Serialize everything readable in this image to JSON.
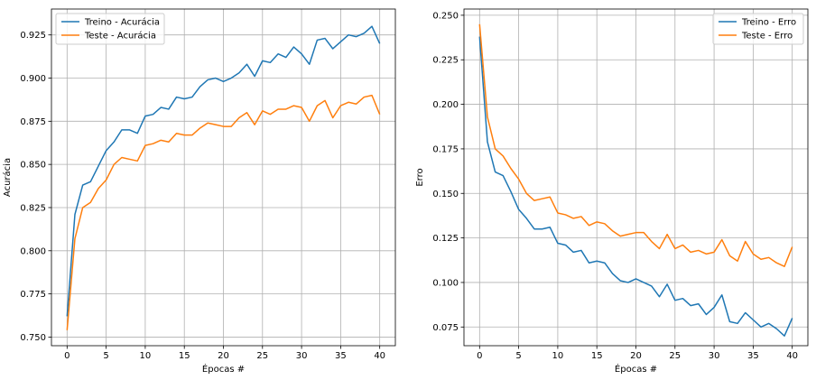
{
  "chart_data": [
    {
      "type": "line",
      "xlabel": "Épocas #",
      "ylabel": "Acurácia",
      "xlim": [
        -2,
        42
      ],
      "ylim": [
        0.745,
        0.94
      ],
      "xticks": [
        0,
        5,
        10,
        15,
        20,
        25,
        30,
        35,
        40
      ],
      "yticks": [
        0.75,
        0.775,
        0.8,
        0.825,
        0.85,
        0.875,
        0.9,
        0.925
      ],
      "ytick_labels": [
        "0.750",
        "0.775",
        "0.800",
        "0.825",
        "0.850",
        "0.875",
        "0.900",
        "0.925"
      ],
      "grid": true,
      "legend_position": "top-left",
      "x": [
        0,
        1,
        2,
        3,
        4,
        5,
        6,
        7,
        8,
        9,
        10,
        11,
        12,
        13,
        14,
        15,
        16,
        17,
        18,
        19,
        20,
        21,
        22,
        23,
        24,
        25,
        26,
        27,
        28,
        29,
        30,
        31,
        32,
        33,
        34,
        35,
        36,
        37,
        38,
        39,
        40
      ],
      "series": [
        {
          "name": "Treino - Acurácia",
          "color": "#1f77b4",
          "values": [
            0.762,
            0.821,
            0.838,
            0.84,
            0.849,
            0.858,
            0.863,
            0.87,
            0.87,
            0.868,
            0.878,
            0.879,
            0.883,
            0.882,
            0.889,
            0.888,
            0.889,
            0.895,
            0.899,
            0.9,
            0.898,
            0.9,
            0.903,
            0.908,
            0.901,
            0.91,
            0.909,
            0.914,
            0.912,
            0.918,
            0.914,
            0.908,
            0.922,
            0.923,
            0.917,
            0.921,
            0.925,
            0.924,
            0.926,
            0.93,
            0.92
          ]
        },
        {
          "name": "Teste - Acurácia",
          "color": "#ff7f0e",
          "values": [
            0.754,
            0.807,
            0.825,
            0.828,
            0.836,
            0.841,
            0.85,
            0.854,
            0.853,
            0.852,
            0.861,
            0.862,
            0.864,
            0.863,
            0.868,
            0.867,
            0.867,
            0.871,
            0.874,
            0.873,
            0.872,
            0.872,
            0.877,
            0.88,
            0.873,
            0.881,
            0.879,
            0.882,
            0.882,
            0.884,
            0.883,
            0.875,
            0.884,
            0.887,
            0.877,
            0.884,
            0.886,
            0.885,
            0.889,
            0.89,
            0.879
          ]
        }
      ]
    },
    {
      "type": "line",
      "xlabel": "Épocas #",
      "ylabel": "Erro",
      "xlim": [
        -2,
        42
      ],
      "ylim": [
        0.0645,
        0.2535
      ],
      "xticks": [
        0,
        5,
        10,
        15,
        20,
        25,
        30,
        35,
        40
      ],
      "yticks": [
        0.075,
        0.1,
        0.125,
        0.15,
        0.175,
        0.2,
        0.225,
        0.25
      ],
      "ytick_labels": [
        "0.075",
        "0.100",
        "0.125",
        "0.150",
        "0.175",
        "0.200",
        "0.225",
        "0.250"
      ],
      "grid": true,
      "legend_position": "top-right",
      "x": [
        0,
        1,
        2,
        3,
        4,
        5,
        6,
        7,
        8,
        9,
        10,
        11,
        12,
        13,
        14,
        15,
        16,
        17,
        18,
        19,
        20,
        21,
        22,
        23,
        24,
        25,
        26,
        27,
        28,
        29,
        30,
        31,
        32,
        33,
        34,
        35,
        36,
        37,
        38,
        39,
        40
      ],
      "series": [
        {
          "name": "Treino - Erro",
          "color": "#1f77b4",
          "values": [
            0.238,
            0.179,
            0.162,
            0.16,
            0.151,
            0.141,
            0.136,
            0.13,
            0.13,
            0.131,
            0.122,
            0.121,
            0.117,
            0.118,
            0.111,
            0.112,
            0.111,
            0.105,
            0.101,
            0.1,
            0.102,
            0.1,
            0.098,
            0.092,
            0.099,
            0.09,
            0.091,
            0.087,
            0.088,
            0.082,
            0.086,
            0.093,
            0.078,
            0.077,
            0.083,
            0.079,
            0.075,
            0.077,
            0.074,
            0.07,
            0.08
          ]
        },
        {
          "name": "Teste - Erro",
          "color": "#ff7f0e",
          "values": [
            0.245,
            0.193,
            0.175,
            0.171,
            0.164,
            0.158,
            0.15,
            0.146,
            0.147,
            0.148,
            0.139,
            0.138,
            0.136,
            0.137,
            0.132,
            0.134,
            0.133,
            0.129,
            0.126,
            0.127,
            0.128,
            0.128,
            0.123,
            0.119,
            0.127,
            0.119,
            0.121,
            0.117,
            0.118,
            0.116,
            0.117,
            0.124,
            0.115,
            0.112,
            0.123,
            0.116,
            0.113,
            0.114,
            0.111,
            0.109,
            0.12
          ]
        }
      ]
    }
  ]
}
